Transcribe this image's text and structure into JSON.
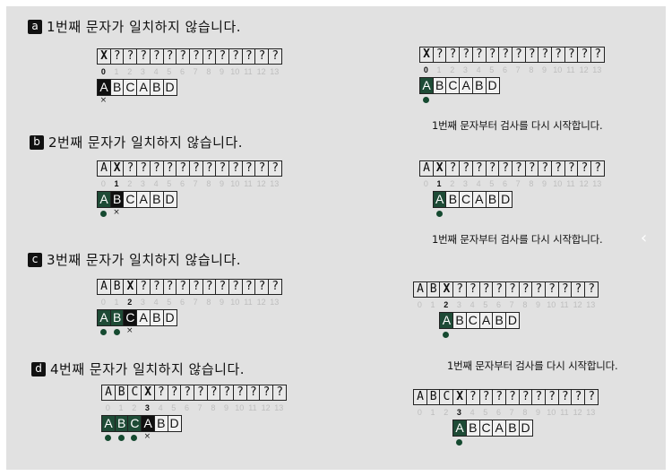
{
  "text_string": [
    "?",
    "?",
    "?",
    "?",
    "?",
    "?",
    "?",
    "?",
    "?",
    "?",
    "?",
    "?",
    "?",
    "?"
  ],
  "indices": [
    "0",
    "1",
    "2",
    "3",
    "4",
    "5",
    "6",
    "7",
    "8",
    "9",
    "10",
    "11",
    "12",
    "13"
  ],
  "pattern": [
    "A",
    "B",
    "C",
    "A",
    "B",
    "D"
  ],
  "mismatch_char": "X",
  "fail_mark": "×",
  "restart_note": "1번째 문자부터 검사를 다시 시작합니다.",
  "colors": {
    "match": "#1e4b36",
    "fail": "#101010",
    "dot": "#154a30",
    "background": "#e1e1e1"
  },
  "sections": [
    {
      "tag": "a",
      "title": "1번째 문자가 일치하지 않습니다.",
      "mismatch_at": 0
    },
    {
      "tag": "b",
      "title": "2번째 문자가 일치하지 않습니다.",
      "mismatch_at": 1
    },
    {
      "tag": "c",
      "title": "3번째 문자가 일치하지 않습니다.",
      "mismatch_at": 2
    },
    {
      "tag": "d",
      "title": "4번째 문자가 일치하지 않습니다.",
      "mismatch_at": 3
    }
  ],
  "icons": {
    "next": "chevron-right-icon"
  }
}
